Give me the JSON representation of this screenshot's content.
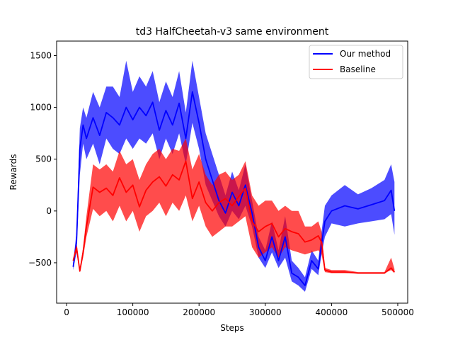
{
  "chart_data": {
    "type": "line",
    "title": "td3 HalfCheetah-v3 same environment",
    "xlabel": "Steps",
    "ylabel": "Rewards",
    "xlim": [
      -15000,
      515000
    ],
    "ylim": [
      -890,
      1640
    ],
    "xticks": [
      {
        "value": 0,
        "label": "0"
      },
      {
        "value": 100000,
        "label": "100000"
      },
      {
        "value": 200000,
        "label": "200000"
      },
      {
        "value": 300000,
        "label": "300000"
      },
      {
        "value": 400000,
        "label": "400000"
      },
      {
        "value": 500000,
        "label": "500000"
      }
    ],
    "yticks": [
      {
        "value": -500,
        "label": "−500"
      },
      {
        "value": 0,
        "label": "0"
      },
      {
        "value": 500,
        "label": "500"
      },
      {
        "value": 1000,
        "label": "1000"
      },
      {
        "value": 1500,
        "label": "1500"
      }
    ],
    "grid": false,
    "legend_position": "top-right",
    "x": [
      10000,
      15000,
      20000,
      25000,
      30000,
      40000,
      50000,
      60000,
      70000,
      80000,
      90000,
      100000,
      110000,
      120000,
      130000,
      140000,
      150000,
      160000,
      170000,
      180000,
      190000,
      200000,
      210000,
      220000,
      230000,
      240000,
      250000,
      260000,
      270000,
      280000,
      290000,
      300000,
      310000,
      320000,
      330000,
      340000,
      350000,
      360000,
      370000,
      380000,
      385000,
      390000,
      400000,
      420000,
      440000,
      460000,
      480000,
      490000,
      495000
    ],
    "series": [
      {
        "name": "Our method",
        "color": "#0000ff",
        "mean": [
          -540,
          -300,
          600,
          830,
          700,
          900,
          730,
          950,
          900,
          830,
          1000,
          880,
          1000,
          920,
          1050,
          780,
          970,
          830,
          1040,
          700,
          1150,
          850,
          500,
          300,
          100,
          -20,
          180,
          50,
          250,
          -20,
          -350,
          -480,
          -250,
          -480,
          -250,
          -600,
          -640,
          -720,
          -480,
          -560,
          -320,
          -100,
          0,
          50,
          20,
          60,
          100,
          200,
          0
        ],
        "lower": [
          -570,
          -400,
          350,
          650,
          500,
          650,
          450,
          700,
          600,
          550,
          700,
          600,
          700,
          650,
          750,
          500,
          700,
          550,
          750,
          450,
          850,
          600,
          250,
          100,
          -50,
          -150,
          0,
          -80,
          50,
          -150,
          -450,
          -550,
          -400,
          -550,
          -450,
          -680,
          -720,
          -780,
          -560,
          -620,
          -420,
          -250,
          -120,
          -150,
          -120,
          -100,
          -80,
          -30,
          -230
        ],
        "upper": [
          -500,
          -200,
          800,
          1000,
          900,
          1150,
          1000,
          1200,
          1200,
          1100,
          1450,
          1150,
          1300,
          1200,
          1350,
          1050,
          1250,
          1100,
          1350,
          950,
          1450,
          1100,
          750,
          550,
          350,
          150,
          380,
          200,
          450,
          100,
          -250,
          -380,
          -100,
          -380,
          -50,
          -480,
          -550,
          -640,
          -380,
          -480,
          -200,
          50,
          150,
          250,
          160,
          220,
          300,
          450,
          280
        ]
      },
      {
        "name": "Baseline",
        "color": "#ff0000",
        "mean": [
          -480,
          -350,
          -580,
          -400,
          -150,
          230,
          180,
          220,
          150,
          320,
          180,
          250,
          40,
          200,
          280,
          330,
          240,
          350,
          300,
          480,
          120,
          280,
          80,
          0,
          80,
          120,
          50,
          140,
          220,
          -100,
          -200,
          -150,
          -120,
          -250,
          -170,
          -200,
          -220,
          -300,
          -280,
          -240,
          -300,
          -570,
          -590,
          -590,
          -600,
          -600,
          -600,
          -550,
          -590
        ],
        "lower": [
          -480,
          -400,
          -590,
          -450,
          -250,
          20,
          -50,
          0,
          -100,
          50,
          -100,
          0,
          -200,
          -50,
          0,
          80,
          -50,
          80,
          0,
          150,
          -100,
          50,
          -150,
          -250,
          -200,
          -150,
          -150,
          -100,
          -50,
          -350,
          -450,
          -400,
          -350,
          -450,
          -350,
          -380,
          -400,
          -420,
          -400,
          -380,
          -420,
          -590,
          -600,
          -600,
          -600,
          -600,
          -600,
          -570,
          -600
        ],
        "upper": [
          -470,
          -300,
          -560,
          -350,
          -50,
          450,
          400,
          450,
          380,
          580,
          450,
          500,
          300,
          450,
          550,
          600,
          500,
          600,
          580,
          700,
          400,
          550,
          350,
          250,
          350,
          380,
          300,
          350,
          480,
          150,
          50,
          100,
          100,
          0,
          50,
          0,
          0,
          -150,
          -150,
          -100,
          -200,
          -550,
          -570,
          -570,
          -590,
          -590,
          -590,
          -450,
          -560
        ]
      }
    ]
  }
}
